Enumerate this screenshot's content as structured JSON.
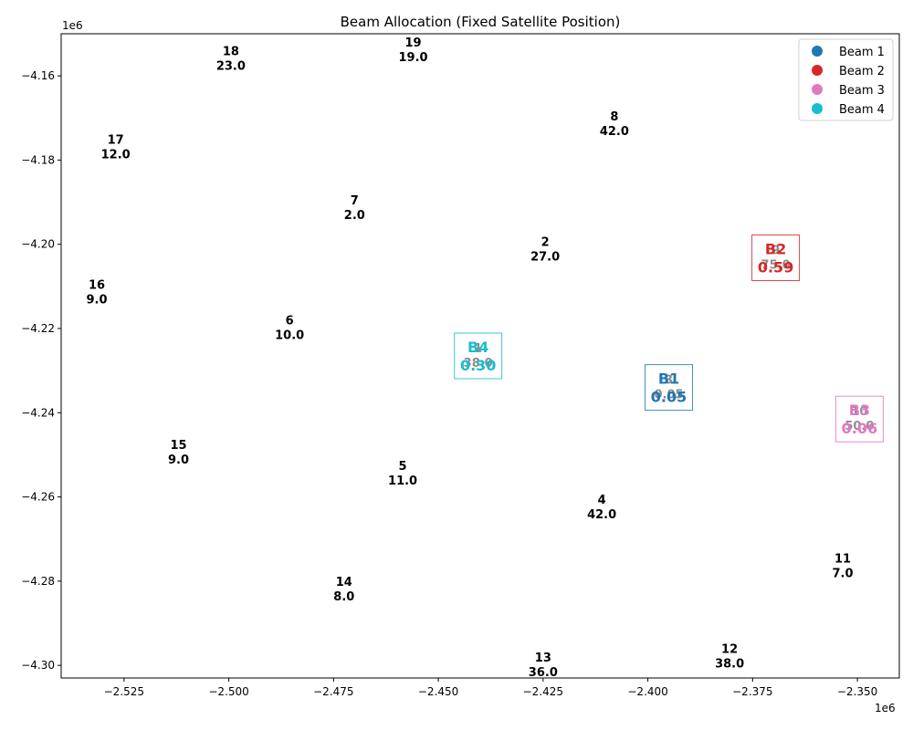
{
  "chart_data": {
    "type": "scatter",
    "title": "Beam Allocation (Fixed Satellite Position)",
    "xlabel": "",
    "ylabel": "",
    "x_offset_label": "1e6",
    "y_offset_label": "1e6",
    "xlim": [
      -2540000,
      -2340000
    ],
    "ylim": [
      -4303000,
      -4150000
    ],
    "x_ticks": [
      -2525000,
      -2500000,
      -2475000,
      -2450000,
      -2425000,
      -2400000,
      -2375000,
      -2350000
    ],
    "x_tick_labels": [
      "−2.525",
      "−2.500",
      "−2.475",
      "−2.450",
      "−2.425",
      "−2.400",
      "−2.375",
      "−2.350"
    ],
    "y_ticks": [
      -4160000,
      -4180000,
      -4200000,
      -4220000,
      -4240000,
      -4260000,
      -4280000,
      -4300000
    ],
    "y_tick_labels": [
      "−4.16",
      "−4.18",
      "−4.20",
      "−4.22",
      "−4.24",
      "−4.26",
      "−4.28",
      "−4.30"
    ],
    "grid": false,
    "legend_position": "top-right",
    "users": [
      {
        "id": "2",
        "demand": "27.0",
        "x": -2424500,
        "y": -4200800
      },
      {
        "id": "4",
        "demand": "42.0",
        "x": -2411000,
        "y": -4262000
      },
      {
        "id": "5",
        "demand": "11.0",
        "x": -2458500,
        "y": -4254000
      },
      {
        "id": "6",
        "demand": "10.0",
        "x": -2485500,
        "y": -4219500
      },
      {
        "id": "7",
        "demand": "2.0",
        "x": -2470000,
        "y": -4191000
      },
      {
        "id": "8",
        "demand": "42.0",
        "x": -2408000,
        "y": -4171000
      },
      {
        "id": "11",
        "demand": "7.0",
        "x": -2353500,
        "y": -4276000
      },
      {
        "id": "12",
        "demand": "38.0",
        "x": -2380500,
        "y": -4297500
      },
      {
        "id": "13",
        "demand": "36.0",
        "x": -2425000,
        "y": -4299500
      },
      {
        "id": "14",
        "demand": "8.0",
        "x": -2472500,
        "y": -4281500
      },
      {
        "id": "15",
        "demand": "9.0",
        "x": -2512000,
        "y": -4249000
      },
      {
        "id": "16",
        "demand": "9.0",
        "x": -2531500,
        "y": -4211000
      },
      {
        "id": "17",
        "demand": "12.0",
        "x": -2527000,
        "y": -4176500
      },
      {
        "id": "18",
        "demand": "23.0",
        "x": -2499500,
        "y": -4155500
      },
      {
        "id": "19",
        "demand": "19.0",
        "x": -2456000,
        "y": -4153500
      }
    ],
    "beams": [
      {
        "name": "Beam 1",
        "short": "B1",
        "value": "0.05",
        "color": "#1f77b4",
        "x": -2395000,
        "y": -4234000,
        "hidden_label": "3",
        "hidden_value": "0.05"
      },
      {
        "name": "Beam 2",
        "short": "B2",
        "value": "0.59",
        "color": "#d62728",
        "x": -2369500,
        "y": -4203200,
        "hidden_label": "9",
        "hidden_value": "75.0"
      },
      {
        "name": "Beam 3",
        "short": "B3",
        "value": "0.06",
        "color": "#e377c2",
        "x": -2349500,
        "y": -4241500,
        "hidden_label": "10",
        "hidden_value": "50.0"
      },
      {
        "name": "Beam 4",
        "short": "B4",
        "value": "0.30",
        "color": "#17becf",
        "x": -2440500,
        "y": -4226500,
        "hidden_label": "1",
        "hidden_value": "38.0"
      }
    ]
  }
}
